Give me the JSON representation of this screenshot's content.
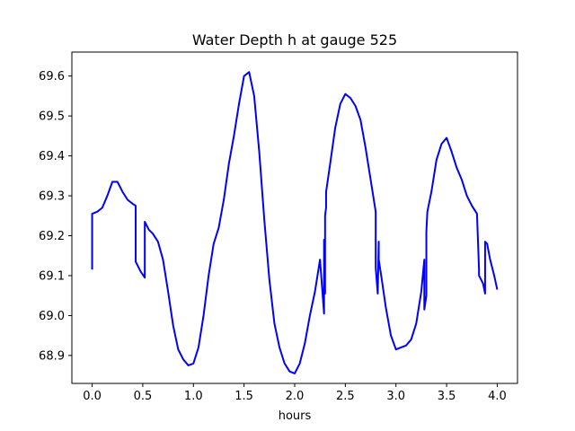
{
  "chart_data": {
    "type": "line",
    "title": "Water Depth h at gauge 525",
    "xlabel": "hours",
    "ylabel": "",
    "xlim": [
      -0.2,
      4.2
    ],
    "ylim": [
      68.83,
      69.66
    ],
    "xticks": [
      "0.0",
      "0.5",
      "1.0",
      "1.5",
      "2.0",
      "2.5",
      "3.0",
      "3.5",
      "4.0"
    ],
    "yticks": [
      "68.9",
      "69.0",
      "69.1",
      "69.2",
      "69.3",
      "69.4",
      "69.5",
      "69.6"
    ],
    "grid": false,
    "series": [
      {
        "color": "#0000ff",
        "x": [
          0.0,
          0.0,
          0.05,
          0.1,
          0.15,
          0.2,
          0.25,
          0.3,
          0.35,
          0.4,
          0.43,
          0.43,
          0.48,
          0.52,
          0.52,
          0.56,
          0.6,
          0.65,
          0.7,
          0.75,
          0.8,
          0.85,
          0.9,
          0.95,
          1.0,
          1.05,
          1.1,
          1.15,
          1.2,
          1.25,
          1.3,
          1.35,
          1.4,
          1.45,
          1.5,
          1.55,
          1.6,
          1.65,
          1.7,
          1.75,
          1.8,
          1.85,
          1.9,
          1.95,
          2.0,
          2.05,
          2.1,
          2.15,
          2.2,
          2.25,
          2.29,
          2.29,
          2.3,
          2.3,
          2.31,
          2.31,
          2.35,
          2.4,
          2.45,
          2.5,
          2.55,
          2.6,
          2.65,
          2.7,
          2.75,
          2.8,
          2.8,
          2.82,
          2.83,
          2.83,
          2.86,
          2.9,
          2.95,
          3.0,
          3.05,
          3.1,
          3.15,
          3.2,
          3.25,
          3.28,
          3.28,
          3.3,
          3.3,
          3.31,
          3.31,
          3.35,
          3.4,
          3.45,
          3.5,
          3.55,
          3.6,
          3.65,
          3.7,
          3.75,
          3.8,
          3.82,
          3.82,
          3.86,
          3.88,
          3.88,
          3.9,
          3.93,
          3.97,
          4.0
        ],
        "y": [
          69.115,
          69.255,
          69.26,
          69.27,
          69.3,
          69.335,
          69.335,
          69.31,
          69.29,
          69.28,
          69.275,
          69.135,
          69.11,
          69.095,
          69.235,
          69.215,
          69.205,
          69.185,
          69.14,
          69.06,
          68.975,
          68.915,
          68.89,
          68.875,
          68.88,
          68.92,
          69.0,
          69.1,
          69.18,
          69.22,
          69.29,
          69.38,
          69.45,
          69.53,
          69.6,
          69.61,
          69.55,
          69.41,
          69.24,
          69.09,
          68.98,
          68.92,
          68.88,
          68.86,
          68.855,
          68.88,
          68.93,
          69.0,
          69.06,
          69.14,
          69.005,
          69.19,
          69.055,
          69.25,
          69.27,
          69.31,
          69.38,
          69.47,
          69.53,
          69.555,
          69.545,
          69.525,
          69.49,
          69.42,
          69.34,
          69.26,
          69.12,
          69.055,
          69.185,
          69.14,
          69.09,
          69.02,
          68.95,
          68.915,
          68.92,
          68.925,
          68.94,
          68.98,
          69.06,
          69.14,
          69.015,
          69.05,
          69.21,
          69.26,
          69.26,
          69.31,
          69.39,
          69.43,
          69.445,
          69.41,
          69.37,
          69.34,
          69.3,
          69.275,
          69.255,
          69.115,
          69.1,
          69.08,
          69.055,
          69.185,
          69.18,
          69.14,
          69.1,
          69.065
        ]
      }
    ]
  }
}
